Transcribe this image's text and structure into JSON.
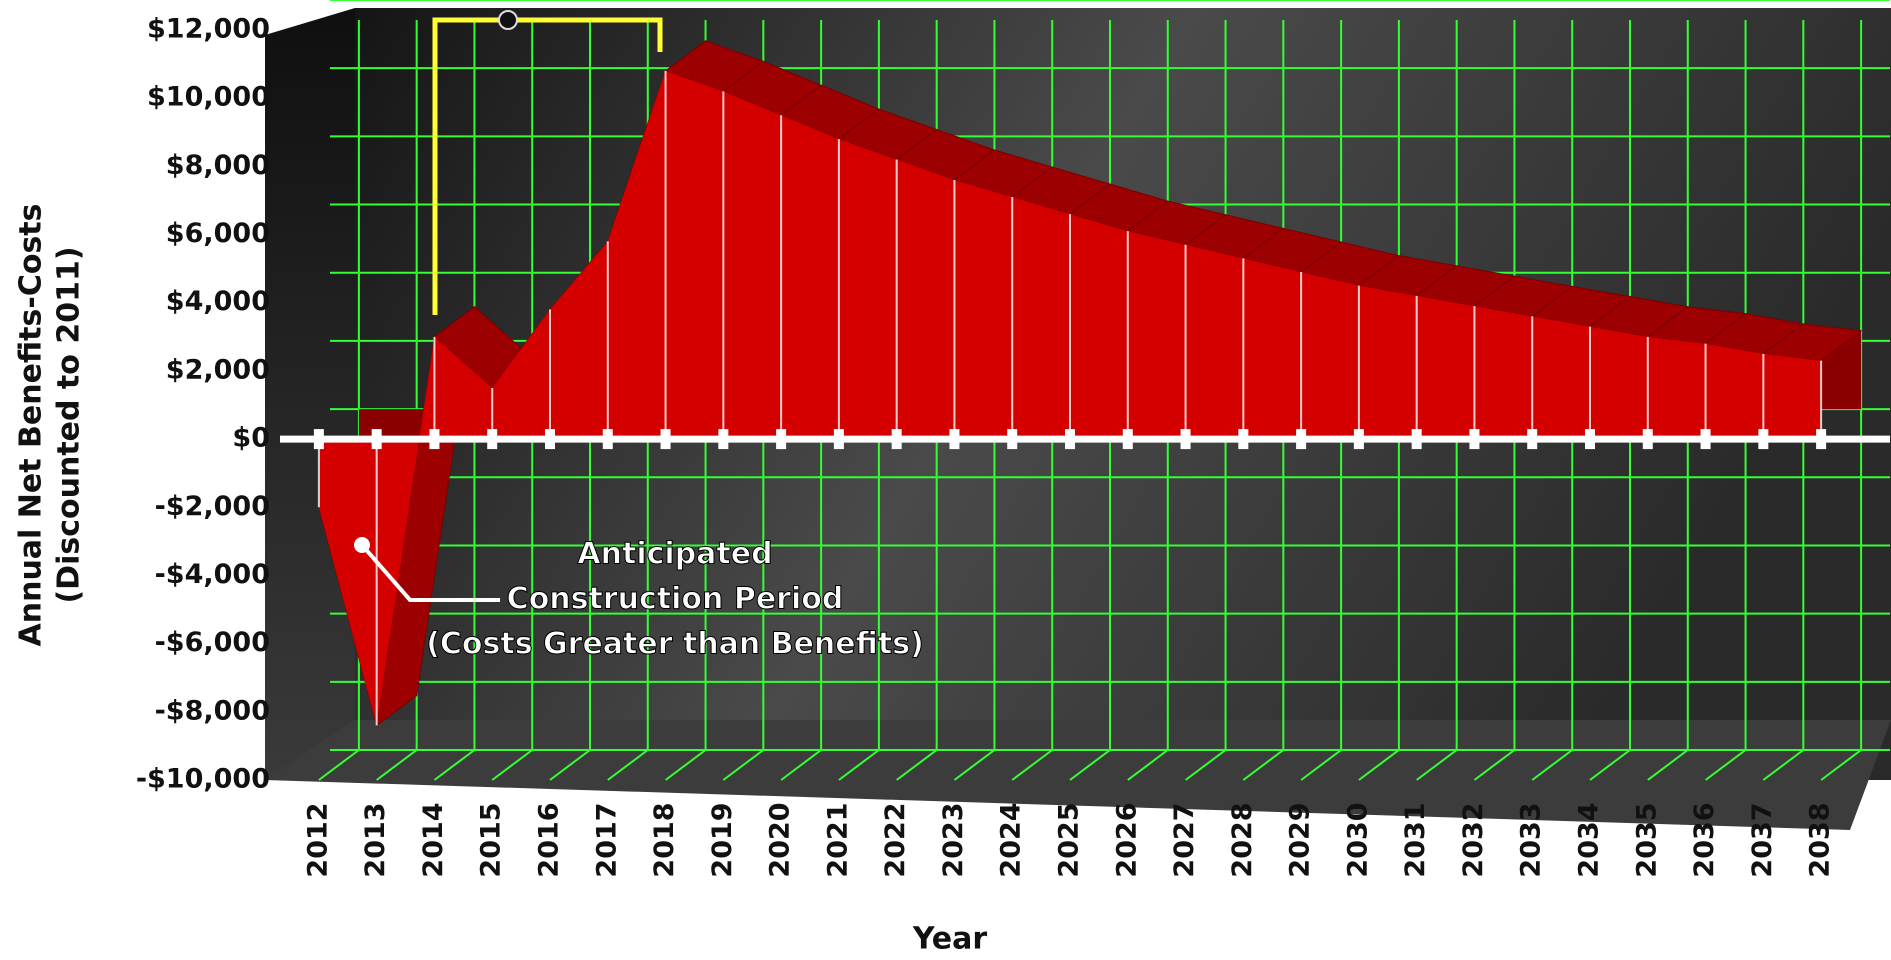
{
  "chart_data": {
    "type": "area",
    "categories": [
      "2012",
      "2013",
      "2014",
      "2015",
      "2016",
      "2017",
      "2018",
      "2019",
      "2020",
      "2021",
      "2022",
      "2023",
      "2024",
      "2025",
      "2026",
      "2027",
      "2028",
      "2029",
      "2030",
      "2031",
      "2032",
      "2033",
      "2034",
      "2035",
      "2036",
      "2037",
      "2038"
    ],
    "series": [
      {
        "name": "Annual Net Benefits-Costs",
        "color": "#d40000",
        "values": [
          -2000,
          -8400,
          3000,
          1500,
          3800,
          5800,
          10800,
          10200,
          9500,
          8800,
          8200,
          7600,
          7100,
          6600,
          6100,
          5700,
          5300,
          4900,
          4500,
          4200,
          3900,
          3600,
          3300,
          3000,
          2800,
          2500,
          2300
        ]
      }
    ],
    "ylim": [
      -10000,
      12000
    ],
    "yticks": [
      {
        "value": -10000,
        "label": "-$10,000"
      },
      {
        "value": -8000,
        "label": "-$8,000"
      },
      {
        "value": -6000,
        "label": "-$6,000"
      },
      {
        "value": -4000,
        "label": "-$4,000"
      },
      {
        "value": -2000,
        "label": "-$2,000"
      },
      {
        "value": 0,
        "label": "$0"
      },
      {
        "value": 2000,
        "label": "$2,000"
      },
      {
        "value": 4000,
        "label": "$4,000"
      },
      {
        "value": 6000,
        "label": "$6,000"
      },
      {
        "value": 8000,
        "label": "$8,000"
      },
      {
        "value": 10000,
        "label": "$10,000"
      },
      {
        "value": 12000,
        "label": "$12,000"
      }
    ],
    "xlabel": "Year",
    "ylabel": [
      "Annual Net Benefits-Costs",
      "(Discounted to 2011)"
    ],
    "annotation": [
      "Anticipated",
      "Construction Period",
      "(Costs Greater than Benefits)"
    ],
    "grid": true,
    "grid_color": "#33ff33"
  }
}
